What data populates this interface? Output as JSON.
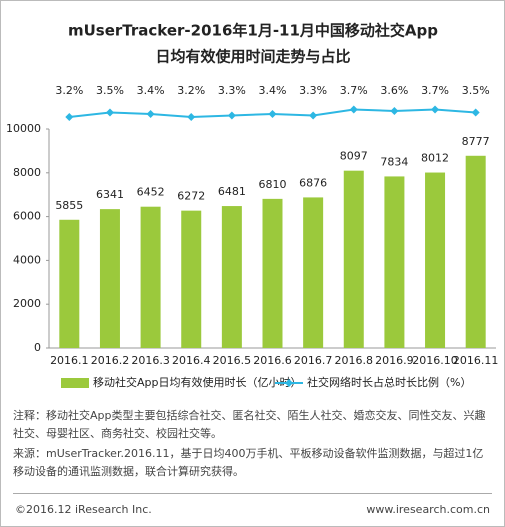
{
  "chart_data": {
    "type": "bar",
    "title": "mUserTracker-2016年1月-11月中国移动社交App",
    "subtitle": "日均有效使用时间走势与占比",
    "categories": [
      "2016.1",
      "2016.2",
      "2016.3",
      "2016.4",
      "2016.5",
      "2016.6",
      "2016.7",
      "2016.8",
      "2016.9",
      "2016.10",
      "2016.11"
    ],
    "series": [
      {
        "name": "移动社交App日均有效使用时长（亿小时）",
        "color": "#9bc93c",
        "type": "bar",
        "values": [
          5855,
          6341,
          6452,
          6272,
          6481,
          6810,
          6876,
          8097,
          7834,
          8012,
          8777
        ]
      },
      {
        "name": "社交网络时长占总时长比例（%）",
        "color": "#2db7e3",
        "type": "line",
        "axis": "y2",
        "values": [
          3.2,
          3.5,
          3.4,
          3.2,
          3.3,
          3.4,
          3.3,
          3.7,
          3.6,
          3.7,
          3.5
        ],
        "value_labels": [
          "3.2%",
          "3.5%",
          "3.4%",
          "3.2%",
          "3.3%",
          "3.4%",
          "3.3%",
          "3.7%",
          "3.6%",
          "3.7%",
          "3.5%"
        ]
      }
    ],
    "ylim": [
      0,
      10000
    ],
    "yticks": [
      0,
      2000,
      4000,
      6000,
      8000,
      10000
    ],
    "y2lim": [
      0,
      4
    ],
    "notes": [
      "注释：移动社交App类型主要包括综合社交、匿名社交、陌生人社交、婚恋交友、同性交友、兴趣社交、母婴社区、商务社交、校园社交等。",
      "来源：mUserTracker.2016.11，基于日均400万手机、平板移动设备软件监测数据，与超过1亿移动设备的通讯监测数据，联合计算研究获得。"
    ],
    "footer_left": "©2016.12 iResearch Inc.",
    "footer_right": "www.iresearch.com.cn"
  }
}
